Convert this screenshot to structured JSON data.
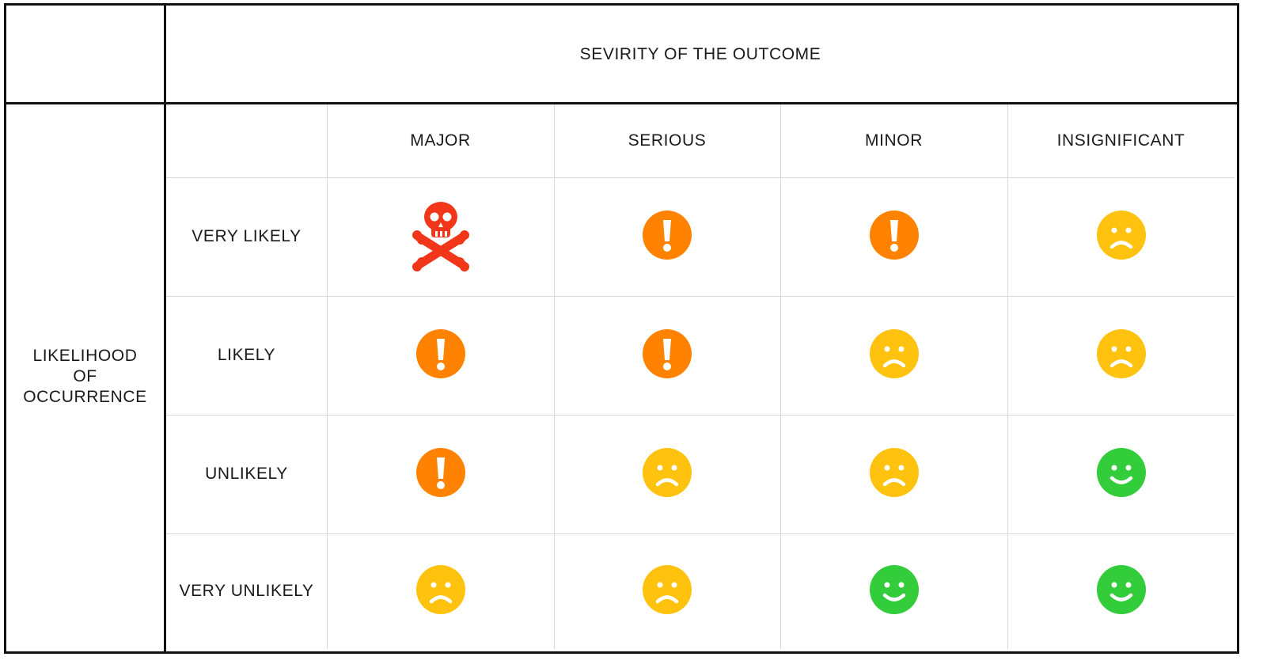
{
  "header": {
    "title": "SEVIRITY OF THE OUTCOME"
  },
  "side": {
    "line1": "LIKELIHOOD",
    "line2": "OF",
    "line3": "OCCURRENCE"
  },
  "severity": [
    "MAJOR",
    "SERIOUS",
    "MINOR",
    "INSIGNIFICANT"
  ],
  "likelihood": [
    "VERY LIKELY",
    "LIKELY",
    "UNLIKELY",
    "VERY UNLIKELY"
  ],
  "matrix": [
    [
      "skull",
      "warning",
      "warning",
      "sad"
    ],
    [
      "warning",
      "warning",
      "sad",
      "sad"
    ],
    [
      "warning",
      "sad",
      "sad",
      "happy"
    ],
    [
      "sad",
      "sad",
      "happy",
      "happy"
    ]
  ],
  "icon_names": {
    "skull": "skull-crossbones-icon",
    "warning": "exclamation-icon",
    "sad": "sad-face-icon",
    "happy": "smiley-face-icon"
  },
  "colors": {
    "skull": "#f2361a",
    "warning": "#ff8200",
    "sad": "#ffc20e",
    "happy": "#33cc3a",
    "grid": "#d9d9d9",
    "border": "#111111"
  }
}
